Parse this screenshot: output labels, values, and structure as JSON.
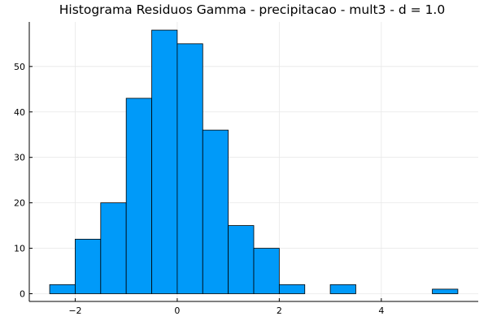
{
  "chart_data": {
    "type": "bar",
    "title": "Histograma Residuos Gamma - precipitacao - mult3 - d = 1.0",
    "xlabel": "",
    "ylabel": "",
    "bin_edges": [
      -2.5,
      -2.0,
      -1.5,
      -1.0,
      -0.5,
      0.0,
      0.5,
      1.0,
      1.5,
      2.0,
      2.5,
      3.0,
      3.5,
      4.0,
      4.5,
      5.0,
      5.5
    ],
    "values": [
      2,
      12,
      20,
      43,
      58,
      55,
      36,
      15,
      10,
      2,
      0,
      2,
      0,
      0,
      0,
      1
    ],
    "xlim": [
      -2.9,
      5.9
    ],
    "ylim": [
      -1.7,
      59.8
    ],
    "x_ticks": [
      -2,
      0,
      2,
      4
    ],
    "x_tick_labels": [
      "−2",
      "0",
      "2",
      "4"
    ],
    "y_ticks": [
      0,
      10,
      20,
      30,
      40,
      50
    ],
    "y_tick_labels": [
      "0",
      "10",
      "20",
      "30",
      "40",
      "50"
    ],
    "grid": true,
    "legend": "none",
    "colors": {
      "bar_fill": "#009af9",
      "bar_edge": "#000000"
    }
  }
}
